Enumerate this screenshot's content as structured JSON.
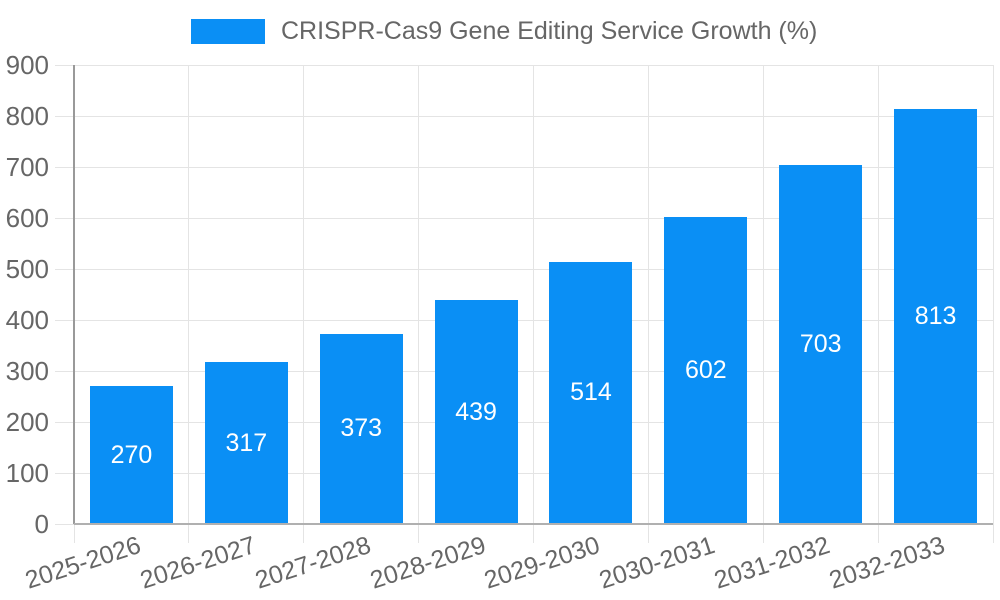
{
  "legend": {
    "items": [
      {
        "label": "CRISPR-Cas9 Gene Editing Service Growth (%)",
        "color": "#0a8ff5"
      }
    ],
    "position": "top"
  },
  "chart_data": {
    "type": "bar",
    "title": "CRISPR-Cas9 Gene Editing Service Growth (%)",
    "categories": [
      "2025-2026",
      "2026-2027",
      "2027-2028",
      "2028-2029",
      "2029-2030",
      "2030-2031",
      "2031-2032",
      "2032-2033"
    ],
    "values": [
      270,
      317,
      373,
      439,
      514,
      602,
      703,
      813
    ],
    "xlabel": "",
    "ylabel": "",
    "ylim": [
      0,
      900
    ],
    "yticks": [
      0,
      100,
      200,
      300,
      400,
      500,
      600,
      700,
      800,
      900
    ],
    "grid": true,
    "legend_position": "top",
    "value_labels_visible": true,
    "x_tick_rotation_deg": -18
  },
  "colors": {
    "background": "#ffffff",
    "bar": "#0a8ff5",
    "grid": "#e4e4e4",
    "axis_y": "#999999",
    "axis_x": "#b0b0b0",
    "tick_text": "#666666",
    "legend_text": "#666666",
    "value_text": "#ffffff"
  }
}
